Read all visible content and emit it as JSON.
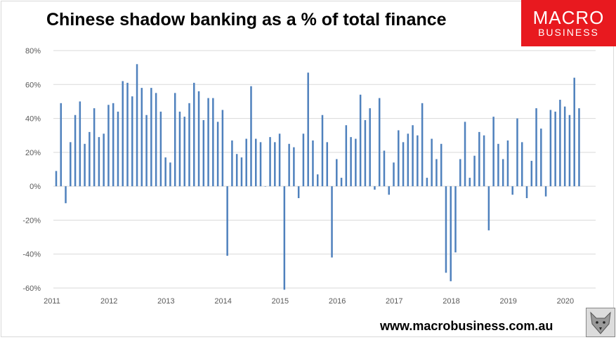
{
  "header": {
    "title": "Chinese shadow banking as a % of total finance"
  },
  "logo": {
    "line1": "MACRO",
    "line2": "BUSINESS",
    "color": "#e8191f"
  },
  "footer": {
    "url": "www.macrobusiness.com.au",
    "icon": "wolf-icon"
  },
  "chart_data": {
    "type": "bar",
    "title": "Chinese shadow banking as a % of total finance",
    "xlabel": "",
    "ylabel": "",
    "ylim": [
      -60,
      80
    ],
    "yticks": [
      "80%",
      "60%",
      "40%",
      "20%",
      "0%",
      "-20%",
      "-40%",
      "-60%"
    ],
    "ytick_values": [
      80,
      60,
      40,
      20,
      0,
      -20,
      -40,
      -60
    ],
    "xticks": [
      "2011",
      "2012",
      "2013",
      "2014",
      "2015",
      "2016",
      "2017",
      "2018",
      "2019",
      "2020"
    ],
    "grid": "horizontal",
    "color": "#4f81bd",
    "frequency": "monthly",
    "start": "2011-01",
    "values": [
      9,
      49,
      -10,
      26,
      42,
      50,
      25,
      32,
      46,
      29,
      31,
      48,
      49,
      44,
      62,
      61,
      53,
      72,
      58,
      42,
      58,
      55,
      44,
      17,
      14,
      55,
      44,
      41,
      49,
      61,
      56,
      39,
      52,
      52,
      38,
      45,
      -41,
      27,
      19,
      17,
      28,
      59,
      28,
      26,
      0,
      29,
      26,
      31,
      -61,
      25,
      23,
      -7,
      31,
      67,
      27,
      7,
      42,
      26,
      -42,
      16,
      5,
      36,
      29,
      28,
      54,
      39,
      46,
      -2,
      52,
      21,
      -5,
      14,
      33,
      26,
      31,
      36,
      30,
      49,
      5,
      28,
      16,
      25,
      -51,
      -56,
      -39,
      16,
      38,
      5,
      18,
      32,
      30,
      -26,
      41,
      25,
      16,
      27,
      -5,
      40,
      26,
      -7,
      15,
      46,
      34,
      -6,
      45,
      44,
      51,
      47,
      42,
      64,
      46
    ]
  }
}
